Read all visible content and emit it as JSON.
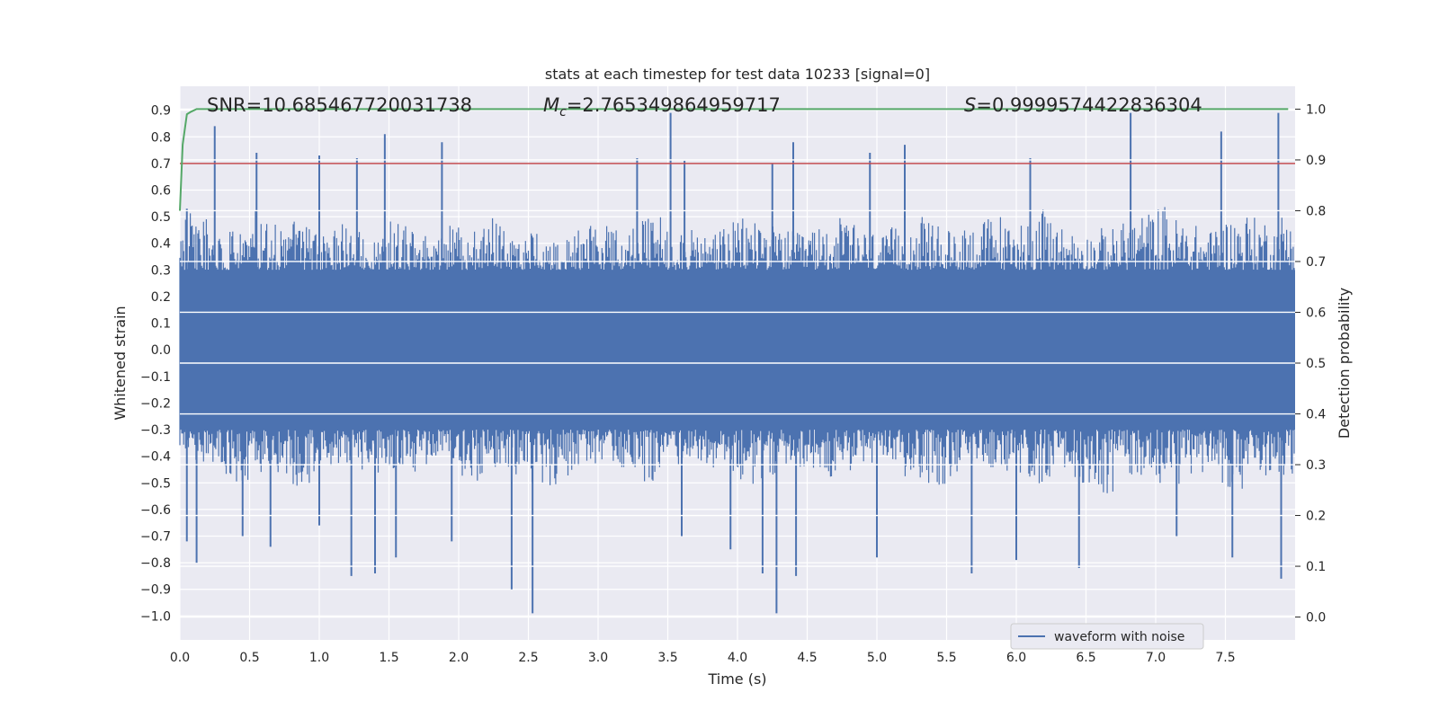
{
  "chart_data": {
    "type": "line",
    "title": "stats at each timestep for test data 10233 [signal=0]",
    "xlabel": "Time (s)",
    "ylabel": "Whitened strain",
    "y2label": "Detection probability",
    "xlim": [
      0.0,
      8.0
    ],
    "ylim": [
      -1.09,
      0.99
    ],
    "y2lim": [
      -0.045,
      1.045
    ],
    "xticks": [
      "0.0",
      "0.5",
      "1.0",
      "1.5",
      "2.0",
      "2.5",
      "3.0",
      "3.5",
      "4.0",
      "4.5",
      "5.0",
      "5.5",
      "6.0",
      "6.5",
      "7.0",
      "7.5"
    ],
    "yticks": [
      "0.9",
      "0.8",
      "0.7",
      "0.6",
      "0.5",
      "0.4",
      "0.3",
      "0.2",
      "0.1",
      "0.0",
      "−0.1",
      "−0.2",
      "−0.3",
      "−0.4",
      "−0.5",
      "−0.6",
      "−0.7",
      "−0.8",
      "−0.9",
      "−1.0"
    ],
    "y2ticks": [
      "1.0",
      "0.9",
      "0.8",
      "0.7",
      "0.6",
      "0.5",
      "0.4",
      "0.3",
      "0.2",
      "0.1",
      "0.0"
    ],
    "grid": true,
    "legend": {
      "position": "bottom-right",
      "entries": [
        "waveform with noise"
      ]
    },
    "annotations": {
      "snr": "SNR=10.685467720031738",
      "mc_var": "M",
      "mc_sub": "c",
      "mc_val": "=2.765349864959717",
      "s_var": "S",
      "s_val": "=0.9999574422836304"
    },
    "series": [
      {
        "name": "waveform with noise",
        "axis": "left",
        "color": "#4c72b0",
        "envelope_upper": [
          0.52,
          0.5,
          0.48,
          0.46,
          0.5,
          0.55,
          0.48,
          0.45,
          0.5,
          0.47,
          0.44,
          0.48,
          0.46,
          0.42,
          0.45,
          0.5,
          0.47,
          0.43,
          0.46,
          0.48,
          0.44,
          0.46,
          0.5,
          0.47,
          0.45,
          0.44,
          0.42,
          0.44,
          0.46,
          0.5,
          0.48,
          0.45,
          0.47,
          0.5,
          0.52,
          0.48,
          0.45,
          0.44,
          0.46,
          0.48,
          0.5,
          0.52,
          0.47,
          0.45,
          0.44,
          0.46,
          0.48,
          0.5,
          0.47,
          0.45,
          0.43,
          0.46,
          0.48,
          0.5,
          0.47,
          0.45,
          0.48,
          0.5,
          0.52,
          0.47,
          0.5,
          0.53,
          0.5,
          0.47,
          0.45,
          0.44,
          0.46,
          0.48,
          0.5,
          0.52,
          0.55,
          0.5,
          0.47,
          0.45,
          0.48,
          0.5,
          0.52,
          0.5,
          0.47,
          0.52
        ],
        "envelope_lower": [
          -0.38,
          -0.42,
          -0.45,
          -0.48,
          -0.5,
          -0.46,
          -0.44,
          -0.48,
          -0.52,
          -0.5,
          -0.46,
          -0.44,
          -0.42,
          -0.45,
          -0.48,
          -0.5,
          -0.46,
          -0.44,
          -0.42,
          -0.46,
          -0.48,
          -0.5,
          -0.46,
          -0.44,
          -0.48,
          -0.5,
          -0.52,
          -0.48,
          -0.46,
          -0.44,
          -0.42,
          -0.45,
          -0.48,
          -0.5,
          -0.46,
          -0.44,
          -0.42,
          -0.44,
          -0.46,
          -0.48,
          -0.5,
          -0.52,
          -0.48,
          -0.46,
          -0.44,
          -0.46,
          -0.48,
          -0.5,
          -0.46,
          -0.44,
          -0.42,
          -0.45,
          -0.48,
          -0.5,
          -0.52,
          -0.48,
          -0.44,
          -0.42,
          -0.45,
          -0.48,
          -0.5,
          -0.52,
          -0.48,
          -0.46,
          -0.5,
          -0.52,
          -0.55,
          -0.5,
          -0.48,
          -0.46,
          -0.5,
          -0.52,
          -0.48,
          -0.46,
          -0.5,
          -0.52,
          -0.55,
          -0.5,
          -0.46,
          -0.48
        ],
        "core_upper": 0.3,
        "core_lower": -0.3,
        "spikes": [
          {
            "x": 0.05,
            "y": 0.53
          },
          {
            "x": 0.25,
            "y": 0.84
          },
          {
            "x": 0.55,
            "y": 0.74
          },
          {
            "x": 1.0,
            "y": 0.73
          },
          {
            "x": 1.27,
            "y": 0.72
          },
          {
            "x": 1.47,
            "y": 0.81
          },
          {
            "x": 1.88,
            "y": 0.78
          },
          {
            "x": 3.28,
            "y": 0.72
          },
          {
            "x": 3.52,
            "y": 0.89
          },
          {
            "x": 3.62,
            "y": 0.71
          },
          {
            "x": 4.25,
            "y": 0.7
          },
          {
            "x": 4.4,
            "y": 0.78
          },
          {
            "x": 4.95,
            "y": 0.74
          },
          {
            "x": 5.2,
            "y": 0.77
          },
          {
            "x": 6.1,
            "y": 0.72
          },
          {
            "x": 6.82,
            "y": 0.89
          },
          {
            "x": 7.47,
            "y": 0.82
          },
          {
            "x": 7.88,
            "y": 0.89
          },
          {
            "x": 0.05,
            "y": -0.72
          },
          {
            "x": 0.12,
            "y": -0.8
          },
          {
            "x": 0.45,
            "y": -0.7
          },
          {
            "x": 0.65,
            "y": -0.74
          },
          {
            "x": 1.0,
            "y": -0.66
          },
          {
            "x": 1.23,
            "y": -0.85
          },
          {
            "x": 1.4,
            "y": -0.84
          },
          {
            "x": 1.55,
            "y": -0.78
          },
          {
            "x": 1.95,
            "y": -0.72
          },
          {
            "x": 2.38,
            "y": -0.9
          },
          {
            "x": 2.53,
            "y": -0.99
          },
          {
            "x": 3.6,
            "y": -0.7
          },
          {
            "x": 3.95,
            "y": -0.75
          },
          {
            "x": 4.18,
            "y": -0.84
          },
          {
            "x": 4.28,
            "y": -0.99
          },
          {
            "x": 4.42,
            "y": -0.85
          },
          {
            "x": 5.0,
            "y": -0.78
          },
          {
            "x": 5.68,
            "y": -0.84
          },
          {
            "x": 6.0,
            "y": -0.79
          },
          {
            "x": 6.45,
            "y": -0.82
          },
          {
            "x": 7.15,
            "y": -0.7
          },
          {
            "x": 7.55,
            "y": -0.78
          },
          {
            "x": 7.9,
            "y": -0.86
          }
        ]
      },
      {
        "name": "",
        "axis": "right",
        "color": "#55a868",
        "x": [
          0.0,
          0.02,
          0.05,
          0.08,
          0.12,
          0.2,
          7.95
        ],
        "y": [
          0.8,
          0.93,
          0.99,
          0.995,
          1.0,
          1.0,
          1.0
        ]
      },
      {
        "name": "",
        "axis": "left",
        "color": "#c44e52",
        "x": [
          0.0,
          8.0
        ],
        "y": [
          0.7,
          0.7
        ]
      }
    ]
  }
}
